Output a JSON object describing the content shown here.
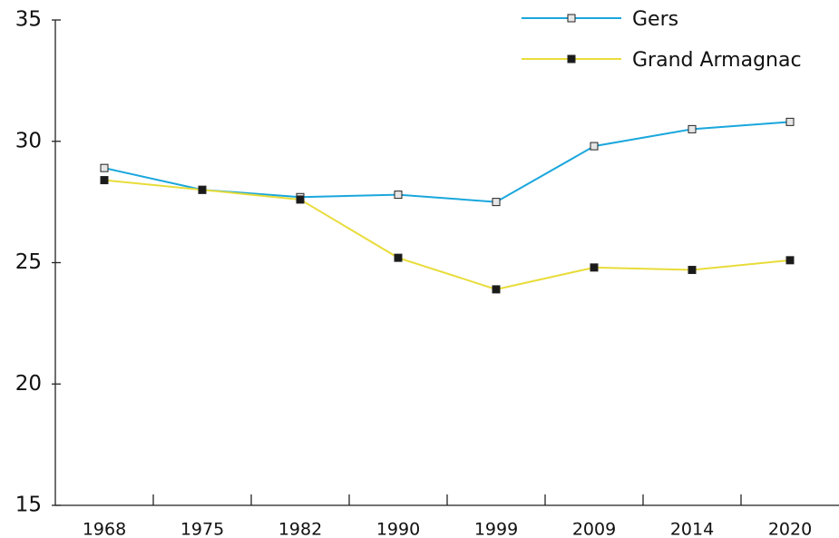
{
  "chart_data": {
    "type": "line",
    "categories": [
      "1968",
      "1975",
      "1982",
      "1990",
      "1999",
      "2009",
      "2014",
      "2020"
    ],
    "series": [
      {
        "name": "Gers",
        "color": "#1aa7dc",
        "marker_color": "#e6e6e6",
        "values": [
          28.9,
          28.0,
          27.7,
          27.8,
          27.5,
          29.8,
          30.5,
          30.8
        ]
      },
      {
        "name": "Grand Armagnac",
        "color": "#e8dc3a",
        "marker_color": "#1a1a1a",
        "values": [
          28.4,
          28.0,
          27.6,
          25.2,
          23.9,
          24.8,
          24.7,
          25.1
        ]
      }
    ],
    "ylim": [
      15,
      35
    ],
    "yticks": [
      15,
      20,
      25,
      30,
      35
    ],
    "grid": false,
    "legend": "top-right"
  }
}
